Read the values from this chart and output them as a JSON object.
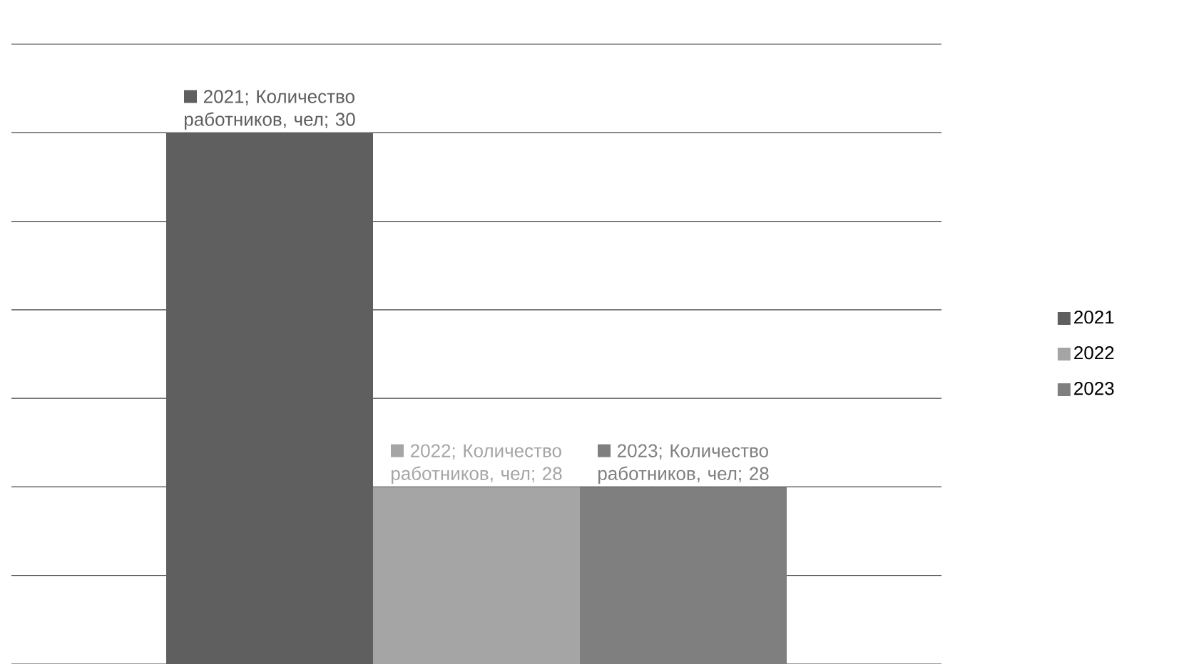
{
  "chart_data": {
    "type": "bar",
    "categories": [
      null
    ],
    "series": [
      {
        "name": "2021",
        "color": "#5f5f5f",
        "values": [
          30
        ],
        "value_labels": [
          "2021; Количество работников, чел; 30"
        ]
      },
      {
        "name": "2022",
        "color": "#a5a5a5",
        "values": [
          28
        ],
        "value_labels": [
          "2022; Количество работников, чел; 28"
        ]
      },
      {
        "name": "2023",
        "color": "#7f7f7f",
        "values": [
          28
        ],
        "value_labels": [
          "2023; Количество работников, чел; 28"
        ]
      }
    ],
    "ylim": [
      27,
      30.5
    ],
    "yticks": [
      {
        "value": 27,
        "label": null
      },
      {
        "value": 27.5,
        "label": null
      },
      {
        "value": 28,
        "label": null
      },
      {
        "value": 28.5,
        "label": null
      },
      {
        "value": 29,
        "label": null
      },
      {
        "value": 29.5,
        "label": null
      },
      {
        "value": 30,
        "label": null
      },
      {
        "value": 30.5,
        "label": null
      }
    ],
    "grid": "y",
    "legend": "right"
  }
}
